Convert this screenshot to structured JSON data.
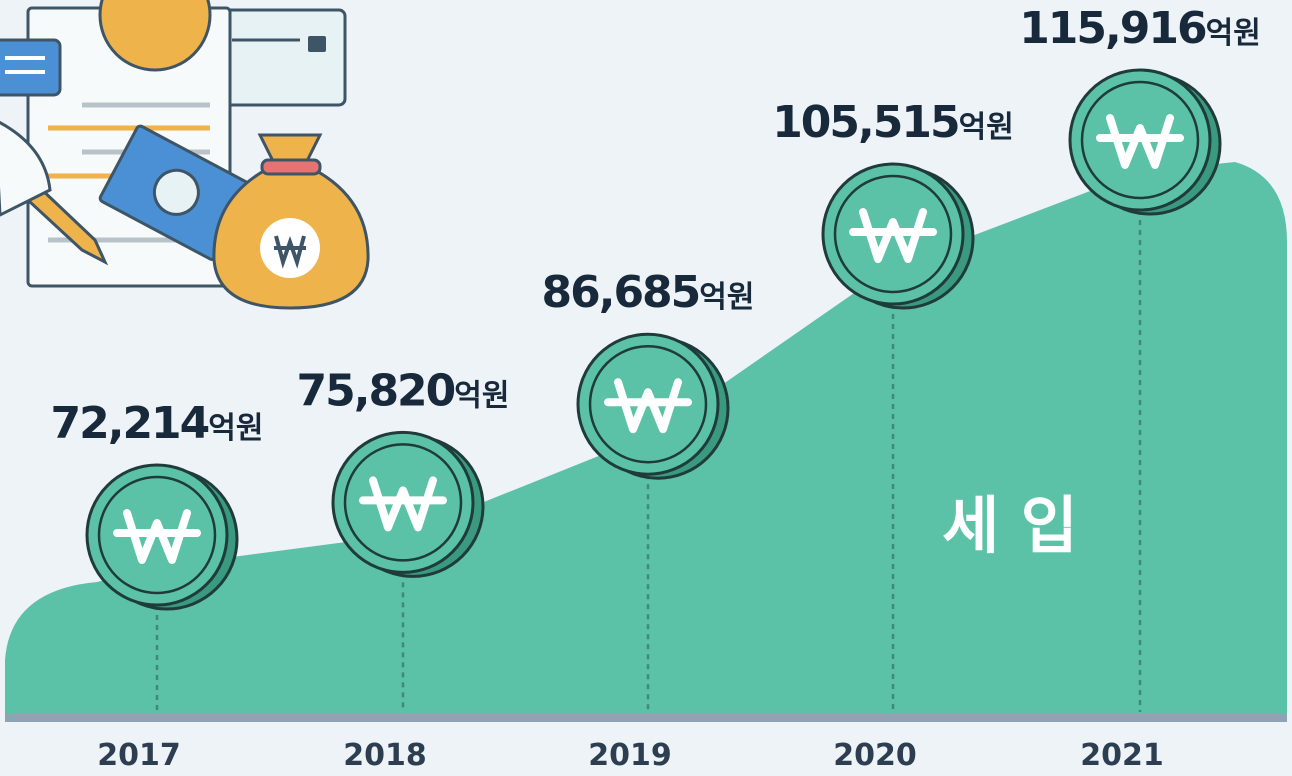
{
  "chart_data": {
    "type": "area",
    "label": "세 입",
    "unit": "억원",
    "categories": [
      "2017",
      "2018",
      "2019",
      "2020",
      "2021"
    ],
    "values": [
      72214,
      75820,
      86685,
      105515,
      115916
    ],
    "value_labels": [
      "72,214",
      "75,820",
      "86,685",
      "105,515",
      "115,916"
    ],
    "color": "#5bc2a7"
  }
}
